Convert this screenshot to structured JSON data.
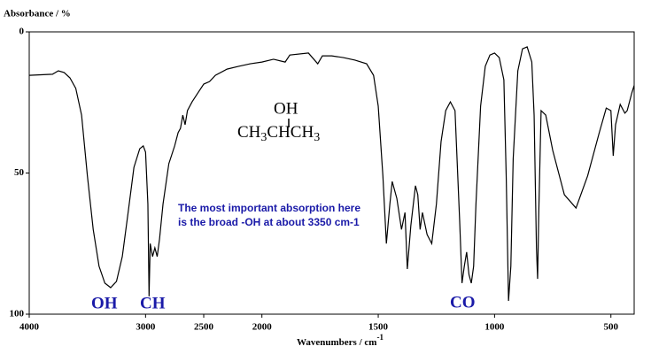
{
  "chart_data": {
    "type": "line",
    "y_label": "Absorbance / %",
    "x_label": "Wavenumbers / cm",
    "x_label_superscript": "-1",
    "xlim": [
      4000,
      400
    ],
    "x_expanded_below": 2000,
    "x_expansion": 2,
    "xticks": [
      4000,
      3000,
      2500,
      2000,
      1500,
      1000,
      500
    ],
    "ylim": [
      0,
      100
    ],
    "y_inverted": true,
    "yticks": [
      0,
      50,
      100
    ],
    "color": "#000000",
    "x": [
      4000,
      3800,
      3750,
      3700,
      3650,
      3600,
      3550,
      3500,
      3450,
      3400,
      3350,
      3300,
      3250,
      3200,
      3150,
      3100,
      3050,
      3020,
      3000,
      2980,
      2970,
      2960,
      2940,
      2920,
      2900,
      2880,
      2850,
      2800,
      2750,
      2720,
      2700,
      2680,
      2660,
      2640,
      2600,
      2550,
      2500,
      2450,
      2400,
      2300,
      2200,
      2100,
      2000,
      1950,
      1900,
      1880,
      1800,
      1760,
      1740,
      1700,
      1650,
      1600,
      1550,
      1520,
      1500,
      1480,
      1465,
      1450,
      1440,
      1420,
      1400,
      1385,
      1375,
      1360,
      1340,
      1330,
      1320,
      1310,
      1290,
      1270,
      1250,
      1230,
      1210,
      1190,
      1170,
      1150,
      1140,
      1130,
      1120,
      1110,
      1100,
      1090,
      1080,
      1060,
      1040,
      1020,
      1000,
      980,
      960,
      950,
      940,
      930,
      920,
      900,
      880,
      860,
      840,
      830,
      820,
      815,
      810,
      800,
      780,
      750,
      700,
      650,
      600,
      550,
      520,
      500,
      490,
      480,
      460,
      440,
      430,
      410,
      400
    ],
    "values": [
      15.4,
      15,
      13.8,
      14.4,
      16.3,
      20,
      29.5,
      51,
      70,
      83,
      89,
      90.6,
      88.4,
      79.6,
      64,
      48,
      41.4,
      40.4,
      42.6,
      61,
      93.7,
      75,
      79.6,
      76.5,
      79.6,
      73.4,
      61,
      46.7,
      40.4,
      35.7,
      34.2,
      29.5,
      32.9,
      27.9,
      24.8,
      21.6,
      18.5,
      17.6,
      15.4,
      13.2,
      12.2,
      11.3,
      10.7,
      9.7,
      10.7,
      8.2,
      7.5,
      11.3,
      8.5,
      8.5,
      9.1,
      10,
      11.3,
      15.4,
      26.3,
      51,
      75,
      61,
      53,
      59,
      70,
      64,
      84,
      68.7,
      54.5,
      57.7,
      70,
      64,
      71.8,
      75,
      61,
      38.9,
      27.9,
      24.8,
      27.9,
      67,
      89,
      83,
      78,
      86,
      89,
      83,
      61,
      26.3,
      12.2,
      8.2,
      7.5,
      9.1,
      17,
      51,
      95.3,
      83,
      45,
      13.8,
      6,
      5.3,
      10.7,
      29.5,
      76.5,
      87.5,
      64,
      27.9,
      29.5,
      42,
      57.7,
      62.4,
      51,
      35.7,
      27,
      27.9,
      43.9,
      32.9,
      25.7,
      28.8,
      27.9,
      21.6,
      19
    ],
    "annotations": [
      "OH",
      "CH",
      "CO"
    ],
    "note": [
      "The most important absorption here",
      "is the broad -OH at about 3350 cm-1"
    ],
    "formula": {
      "top": "OH",
      "main": [
        "CH",
        "3",
        "CHCH",
        "3"
      ]
    }
  }
}
